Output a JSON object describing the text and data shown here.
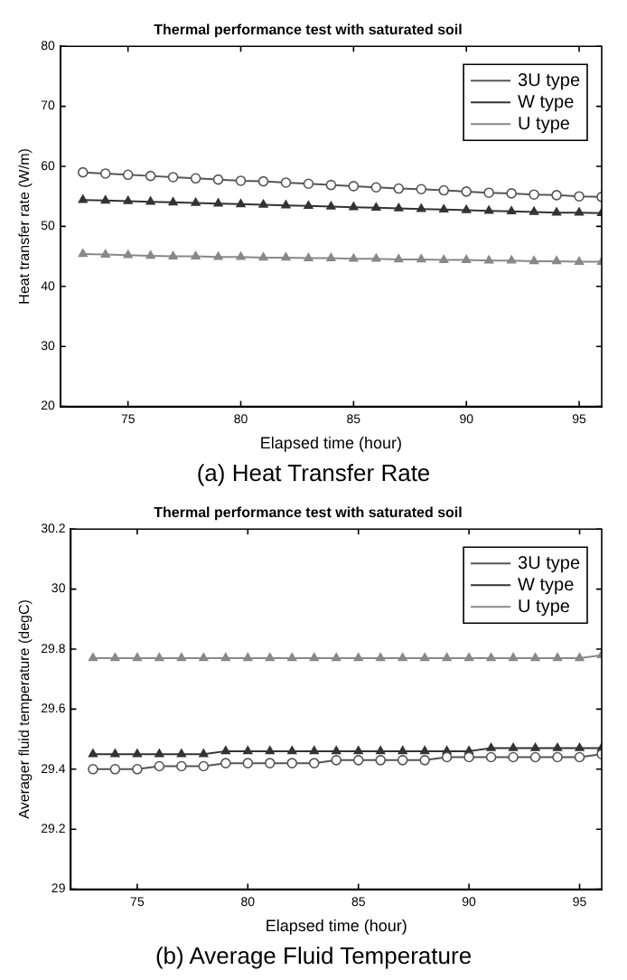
{
  "chart_data": [
    {
      "type": "line",
      "title": "Thermal performance test with saturated soil",
      "xlabel": "Elapsed time (hour)",
      "ylabel": "Heat transfer rate (W/m)",
      "annotations": [
        "(a) Heat Transfer Rate"
      ],
      "x": [
        73,
        74,
        75,
        76,
        77,
        78,
        79,
        80,
        81,
        82,
        83,
        84,
        85,
        86,
        87,
        88,
        89,
        90,
        91,
        92,
        93,
        94,
        95,
        96
      ],
      "xlim": [
        72,
        96
      ],
      "xticks": [
        75,
        80,
        85,
        90,
        95
      ],
      "ylim": [
        20,
        80
      ],
      "yticks": [
        20,
        30,
        40,
        50,
        60,
        70,
        80
      ],
      "grid": false,
      "legend": "top right",
      "line_style": "solid",
      "series": [
        {
          "name": "3U type",
          "color": "#555555",
          "marker": "circle",
          "values": [
            59.0,
            58.8,
            58.6,
            58.4,
            58.2,
            58.0,
            57.8,
            57.6,
            57.5,
            57.3,
            57.1,
            56.9,
            56.7,
            56.5,
            56.3,
            56.2,
            56.0,
            55.8,
            55.6,
            55.5,
            55.3,
            55.2,
            55.0,
            54.9
          ]
        },
        {
          "name": "W type",
          "color": "#333333",
          "marker": "triangle",
          "values": [
            54.4,
            54.3,
            54.2,
            54.1,
            54.0,
            53.9,
            53.8,
            53.7,
            53.6,
            53.5,
            53.4,
            53.3,
            53.2,
            53.1,
            53.0,
            52.9,
            52.8,
            52.7,
            52.6,
            52.5,
            52.4,
            52.3,
            52.3,
            52.2
          ]
        },
        {
          "name": "U type",
          "color": "#888888",
          "marker": "triangle",
          "values": [
            45.4,
            45.3,
            45.2,
            45.1,
            45.0,
            45.0,
            44.9,
            44.9,
            44.8,
            44.8,
            44.7,
            44.7,
            44.6,
            44.6,
            44.5,
            44.5,
            44.4,
            44.4,
            44.3,
            44.3,
            44.2,
            44.2,
            44.1,
            44.1
          ]
        }
      ]
    },
    {
      "type": "line",
      "title": "Thermal performance test with saturated soil",
      "xlabel": "Elapsed time (hour)",
      "ylabel": "Averager fluid temperature (degC)",
      "annotations": [
        "(b) Average Fluid Temperature"
      ],
      "x": [
        73,
        74,
        75,
        76,
        77,
        78,
        79,
        80,
        81,
        82,
        83,
        84,
        85,
        86,
        87,
        88,
        89,
        90,
        91,
        92,
        93,
        94,
        95,
        96
      ],
      "xlim": [
        72,
        96
      ],
      "xticks": [
        75,
        80,
        85,
        90,
        95
      ],
      "ylim": [
        29,
        30.2
      ],
      "yticks": [
        29,
        29.2,
        29.4,
        29.6,
        29.8,
        30,
        30.2
      ],
      "grid": false,
      "legend": "top right",
      "line_style": "solid",
      "series": [
        {
          "name": "3U type",
          "color": "#555555",
          "marker": "circle",
          "values": [
            29.4,
            29.4,
            29.4,
            29.41,
            29.41,
            29.41,
            29.42,
            29.42,
            29.42,
            29.42,
            29.42,
            29.43,
            29.43,
            29.43,
            29.43,
            29.43,
            29.44,
            29.44,
            29.44,
            29.44,
            29.44,
            29.44,
            29.44,
            29.45
          ]
        },
        {
          "name": "W type",
          "color": "#333333",
          "marker": "triangle",
          "values": [
            29.45,
            29.45,
            29.45,
            29.45,
            29.45,
            29.45,
            29.46,
            29.46,
            29.46,
            29.46,
            29.46,
            29.46,
            29.46,
            29.46,
            29.46,
            29.46,
            29.46,
            29.46,
            29.47,
            29.47,
            29.47,
            29.47,
            29.47,
            29.47
          ]
        },
        {
          "name": "U type",
          "color": "#888888",
          "marker": "triangle",
          "values": [
            29.77,
            29.77,
            29.77,
            29.77,
            29.77,
            29.77,
            29.77,
            29.77,
            29.77,
            29.77,
            29.77,
            29.77,
            29.77,
            29.77,
            29.77,
            29.77,
            29.77,
            29.77,
            29.77,
            29.77,
            29.77,
            29.77,
            29.77,
            29.78
          ]
        }
      ]
    }
  ]
}
